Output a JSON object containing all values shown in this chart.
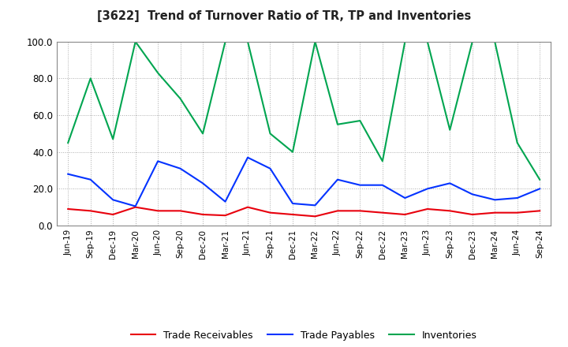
{
  "title": "[3622]  Trend of Turnover Ratio of TR, TP and Inventories",
  "labels": [
    "Jun-19",
    "Sep-19",
    "Dec-19",
    "Mar-20",
    "Jun-20",
    "Sep-20",
    "Dec-20",
    "Mar-21",
    "Jun-21",
    "Sep-21",
    "Dec-21",
    "Mar-22",
    "Jun-22",
    "Sep-22",
    "Dec-22",
    "Mar-23",
    "Jun-23",
    "Sep-23",
    "Dec-23",
    "Mar-24",
    "Jun-24",
    "Sep-24"
  ],
  "trade_receivables": [
    9.0,
    8.0,
    6.0,
    10.0,
    8.0,
    8.0,
    6.0,
    5.5,
    10.0,
    7.0,
    6.0,
    5.0,
    8.0,
    8.0,
    7.0,
    6.0,
    9.0,
    8.0,
    6.0,
    7.0,
    7.0,
    8.0
  ],
  "trade_payables": [
    28.0,
    25.0,
    14.0,
    10.5,
    35.0,
    31.0,
    23.0,
    13.0,
    37.0,
    31.0,
    12.0,
    11.0,
    25.0,
    22.0,
    22.0,
    15.0,
    20.0,
    23.0,
    17.0,
    14.0,
    15.0,
    20.0
  ],
  "inventories": [
    45.0,
    80.0,
    47.0,
    100.0,
    83.0,
    69.0,
    50.0,
    100.0,
    100.0,
    50.0,
    40.0,
    100.0,
    55.0,
    57.0,
    35.0,
    100.0,
    100.0,
    52.0,
    100.0,
    100.0,
    45.0,
    25.0
  ],
  "tr_color": "#e8000d",
  "tp_color": "#0433ff",
  "inv_color": "#00a550",
  "ylim": [
    0.0,
    100.0
  ],
  "yticks": [
    0.0,
    20.0,
    40.0,
    60.0,
    80.0,
    100.0
  ],
  "legend_labels": [
    "Trade Receivables",
    "Trade Payables",
    "Inventories"
  ],
  "bg_color": "#ffffff",
  "grid_color": "#aaaaaa"
}
